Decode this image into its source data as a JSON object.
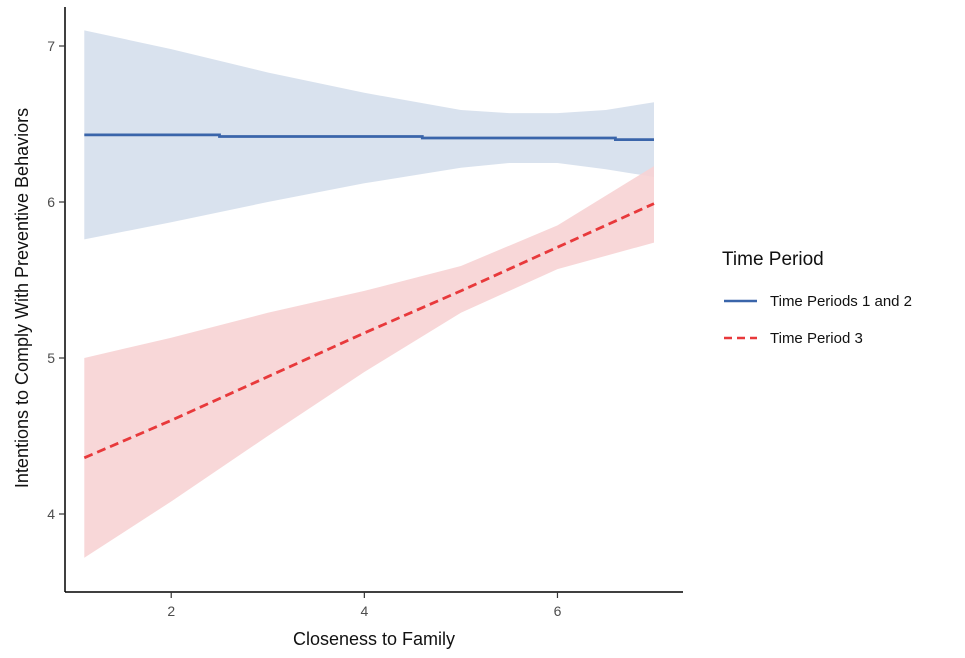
{
  "chart_data": {
    "type": "line",
    "xlabel": "Closeness to Family",
    "ylabel": "Intentions to Comply With Preventive Behaviors",
    "xlim": [
      0.9,
      7.3
    ],
    "ylim": [
      3.5,
      7.25
    ],
    "x_ticks": [
      2,
      4,
      6
    ],
    "y_ticks": [
      4,
      5,
      6,
      7
    ],
    "grid": false,
    "legend": {
      "title": "Time Period",
      "placement": "right"
    },
    "series": [
      {
        "name": "Time Periods 1 and 2",
        "color": "#3a65aa",
        "band_color": "#d5dfec",
        "line_style": "solid",
        "x": [
          1.1,
          2.5,
          2.5,
          4.6,
          4.6,
          6.6,
          6.6,
          7.0
        ],
        "y": [
          6.43,
          6.43,
          6.42,
          6.42,
          6.41,
          6.41,
          6.4,
          6.4
        ],
        "band_x": [
          1.1,
          2.0,
          3.0,
          4.0,
          5.0,
          5.5,
          6.0,
          6.5,
          7.0
        ],
        "band_lower": [
          5.76,
          5.87,
          6.0,
          6.12,
          6.22,
          6.25,
          6.25,
          6.21,
          6.16
        ],
        "band_upper": [
          7.1,
          6.98,
          6.83,
          6.7,
          6.59,
          6.57,
          6.57,
          6.59,
          6.64
        ]
      },
      {
        "name": "Time Period 3",
        "color": "#e8393b",
        "band_color": "#f7d3d4",
        "line_style": "dashed",
        "x": [
          1.1,
          2.0,
          3.0,
          4.0,
          5.0,
          6.0,
          7.0
        ],
        "y": [
          4.36,
          4.6,
          4.88,
          5.16,
          5.43,
          5.71,
          5.99
        ],
        "band_x": [
          1.1,
          2.0,
          3.0,
          4.0,
          5.0,
          6.0,
          7.0
        ],
        "band_lower": [
          3.72,
          4.08,
          4.5,
          4.91,
          5.29,
          5.57,
          5.74
        ],
        "band_upper": [
          5.0,
          5.13,
          5.29,
          5.43,
          5.59,
          5.85,
          6.23
        ]
      }
    ]
  }
}
